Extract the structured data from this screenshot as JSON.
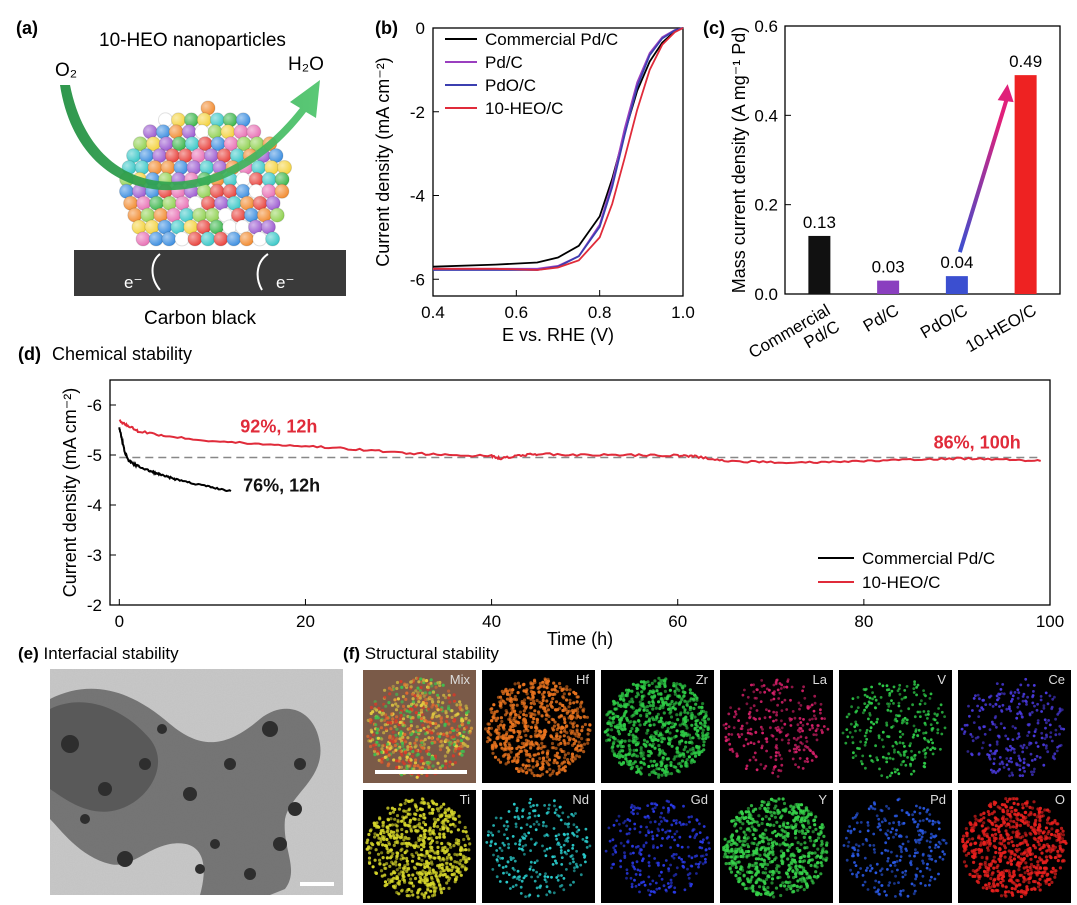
{
  "panels": {
    "a": {
      "label": "(a)",
      "title": "10-HEO nanoparticles",
      "reactant": "O₂",
      "product": "H₂O",
      "electron_left": "e⁻",
      "electron_right": "e⁻",
      "substrate": "Carbon black"
    },
    "e": {
      "label": "(e)",
      "title": "Interfacial stability"
    },
    "f": {
      "label": "(f)",
      "title": "Structural stability",
      "tiles": [
        {
          "element": "Mix",
          "color": "#c8c050"
        },
        {
          "element": "Hf",
          "color": "#e8731e"
        },
        {
          "element": "Zr",
          "color": "#2ecb46"
        },
        {
          "element": "La",
          "color": "#d8206a"
        },
        {
          "element": "V",
          "color": "#2fd04a"
        },
        {
          "element": "Ce",
          "color": "#4a3ae0"
        },
        {
          "element": "Ti",
          "color": "#d6d62a"
        },
        {
          "element": "Nd",
          "color": "#2ad0d0"
        },
        {
          "element": "Gd",
          "color": "#2a3ae8"
        },
        {
          "element": "Y",
          "color": "#36d24a"
        },
        {
          "element": "Pd",
          "color": "#2a5ae8"
        },
        {
          "element": "O",
          "color": "#e8201e"
        }
      ]
    }
  },
  "chart_data": [
    {
      "id": "b",
      "panel_label": "(b)",
      "type": "line",
      "title": "",
      "xlabel": "E vs. RHE (V)",
      "ylabel": "Current density (mA cm⁻²)",
      "xlim": [
        0.4,
        1.0
      ],
      "ylim": [
        -6.4,
        0
      ],
      "xticks": [
        "0.4",
        "0.6",
        "0.8",
        "1.0"
      ],
      "yticks": [
        "0",
        "-2",
        "-4",
        "-6"
      ],
      "legend_position": "top-left",
      "series": [
        {
          "name": "Commercial Pd/C",
          "color": "#000000",
          "x": [
            0.4,
            0.55,
            0.65,
            0.7,
            0.75,
            0.8,
            0.83,
            0.86,
            0.89,
            0.92,
            0.95,
            0.98,
            1.0
          ],
          "y": [
            -5.7,
            -5.65,
            -5.6,
            -5.48,
            -5.2,
            -4.5,
            -3.6,
            -2.5,
            -1.5,
            -0.8,
            -0.35,
            -0.08,
            0.0
          ]
        },
        {
          "name": "Pd/C",
          "color": "#9a3fbf",
          "x": [
            0.4,
            0.55,
            0.65,
            0.7,
            0.75,
            0.8,
            0.83,
            0.86,
            0.89,
            0.92,
            0.95,
            0.98,
            1.0
          ],
          "y": [
            -5.75,
            -5.75,
            -5.75,
            -5.68,
            -5.45,
            -4.7,
            -3.7,
            -2.4,
            -1.3,
            -0.6,
            -0.22,
            -0.05,
            0.0
          ]
        },
        {
          "name": "PdO/C",
          "color": "#3b3fb0",
          "x": [
            0.4,
            0.55,
            0.65,
            0.7,
            0.75,
            0.8,
            0.83,
            0.86,
            0.89,
            0.92,
            0.95,
            0.98,
            1.0
          ],
          "y": [
            -5.78,
            -5.78,
            -5.78,
            -5.7,
            -5.45,
            -4.75,
            -3.8,
            -2.55,
            -1.4,
            -0.65,
            -0.25,
            -0.06,
            0.0
          ]
        },
        {
          "name": "10-HEO/C",
          "color": "#e02b3a",
          "x": [
            0.4,
            0.55,
            0.65,
            0.7,
            0.75,
            0.8,
            0.83,
            0.86,
            0.89,
            0.92,
            0.95,
            0.98,
            1.0
          ],
          "y": [
            -5.75,
            -5.75,
            -5.78,
            -5.72,
            -5.55,
            -5.0,
            -4.2,
            -3.1,
            -1.95,
            -1.0,
            -0.4,
            -0.1,
            0.0
          ]
        }
      ]
    },
    {
      "id": "c",
      "panel_label": "(c)",
      "type": "bar",
      "title": "",
      "xlabel": "",
      "ylabel": "Mass current density (A mg⁻¹ Pd)",
      "ylim": [
        0,
        0.6
      ],
      "yticks": [
        "0.0",
        "0.2",
        "0.4",
        "0.6"
      ],
      "categories": [
        "Commercial Pd/C",
        "Pd/C",
        "PdO/C",
        "10-HEO/C"
      ],
      "category_lines": [
        [
          "Commercial",
          "Pd/C"
        ],
        [
          "Pd/C"
        ],
        [
          "PdO/C"
        ],
        [
          "10-HEO/C"
        ]
      ],
      "values": [
        0.13,
        0.03,
        0.04,
        0.49
      ],
      "value_labels": [
        "0.13",
        "0.03",
        "0.04",
        "0.49"
      ],
      "colors": [
        "#111111",
        "#8a3fbf",
        "#3b4fd0",
        "#ee2222"
      ]
    },
    {
      "id": "d",
      "panel_label": "(d)",
      "type": "line",
      "title": "Chemical stability",
      "xlabel": "Time (h)",
      "ylabel": "Current density (mA cm⁻²)",
      "xlim": [
        -1,
        100
      ],
      "ylim": [
        -6.5,
        -2
      ],
      "xticks": [
        "0",
        "20",
        "40",
        "60",
        "80",
        "100"
      ],
      "yticks": [
        "-6",
        "-5",
        "-4",
        "-3",
        "-2"
      ],
      "reference_line_y": -4.95,
      "legend_position": "bottom-right",
      "annotations": [
        {
          "text": "92%, 12h",
          "x": 13,
          "y": -5.45,
          "color": "#e02b3a"
        },
        {
          "text": "86%, 100h",
          "x": 87.5,
          "y": -5.13,
          "color": "#e02b3a"
        },
        {
          "text": "76%, 12h",
          "x": 13.3,
          "y": -4.27,
          "color": "#111111"
        }
      ],
      "series": [
        {
          "name": "Commercial Pd/C",
          "color": "#000000",
          "x": [
            0,
            0.3,
            0.6,
            1,
            1.5,
            2,
            3,
            4,
            5,
            6,
            8,
            10,
            12
          ],
          "y": [
            -5.55,
            -5.3,
            -5.05,
            -4.9,
            -4.82,
            -4.78,
            -4.7,
            -4.63,
            -4.57,
            -4.52,
            -4.43,
            -4.35,
            -4.28
          ]
        },
        {
          "name": "10-HEO/C",
          "color": "#e02b3a",
          "x": [
            0,
            1,
            2,
            5,
            10,
            15,
            20,
            25,
            30,
            35,
            40,
            41,
            43,
            45,
            50,
            55,
            60,
            62,
            65,
            70,
            75,
            80,
            85,
            90,
            95,
            99
          ],
          "y": [
            -5.68,
            -5.58,
            -5.48,
            -5.38,
            -5.28,
            -5.22,
            -5.18,
            -5.12,
            -5.05,
            -5.0,
            -4.98,
            -4.93,
            -4.99,
            -5.02,
            -5.0,
            -5.0,
            -4.99,
            -4.97,
            -4.88,
            -4.86,
            -4.85,
            -4.88,
            -4.9,
            -4.93,
            -4.92,
            -4.88
          ]
        }
      ]
    }
  ]
}
